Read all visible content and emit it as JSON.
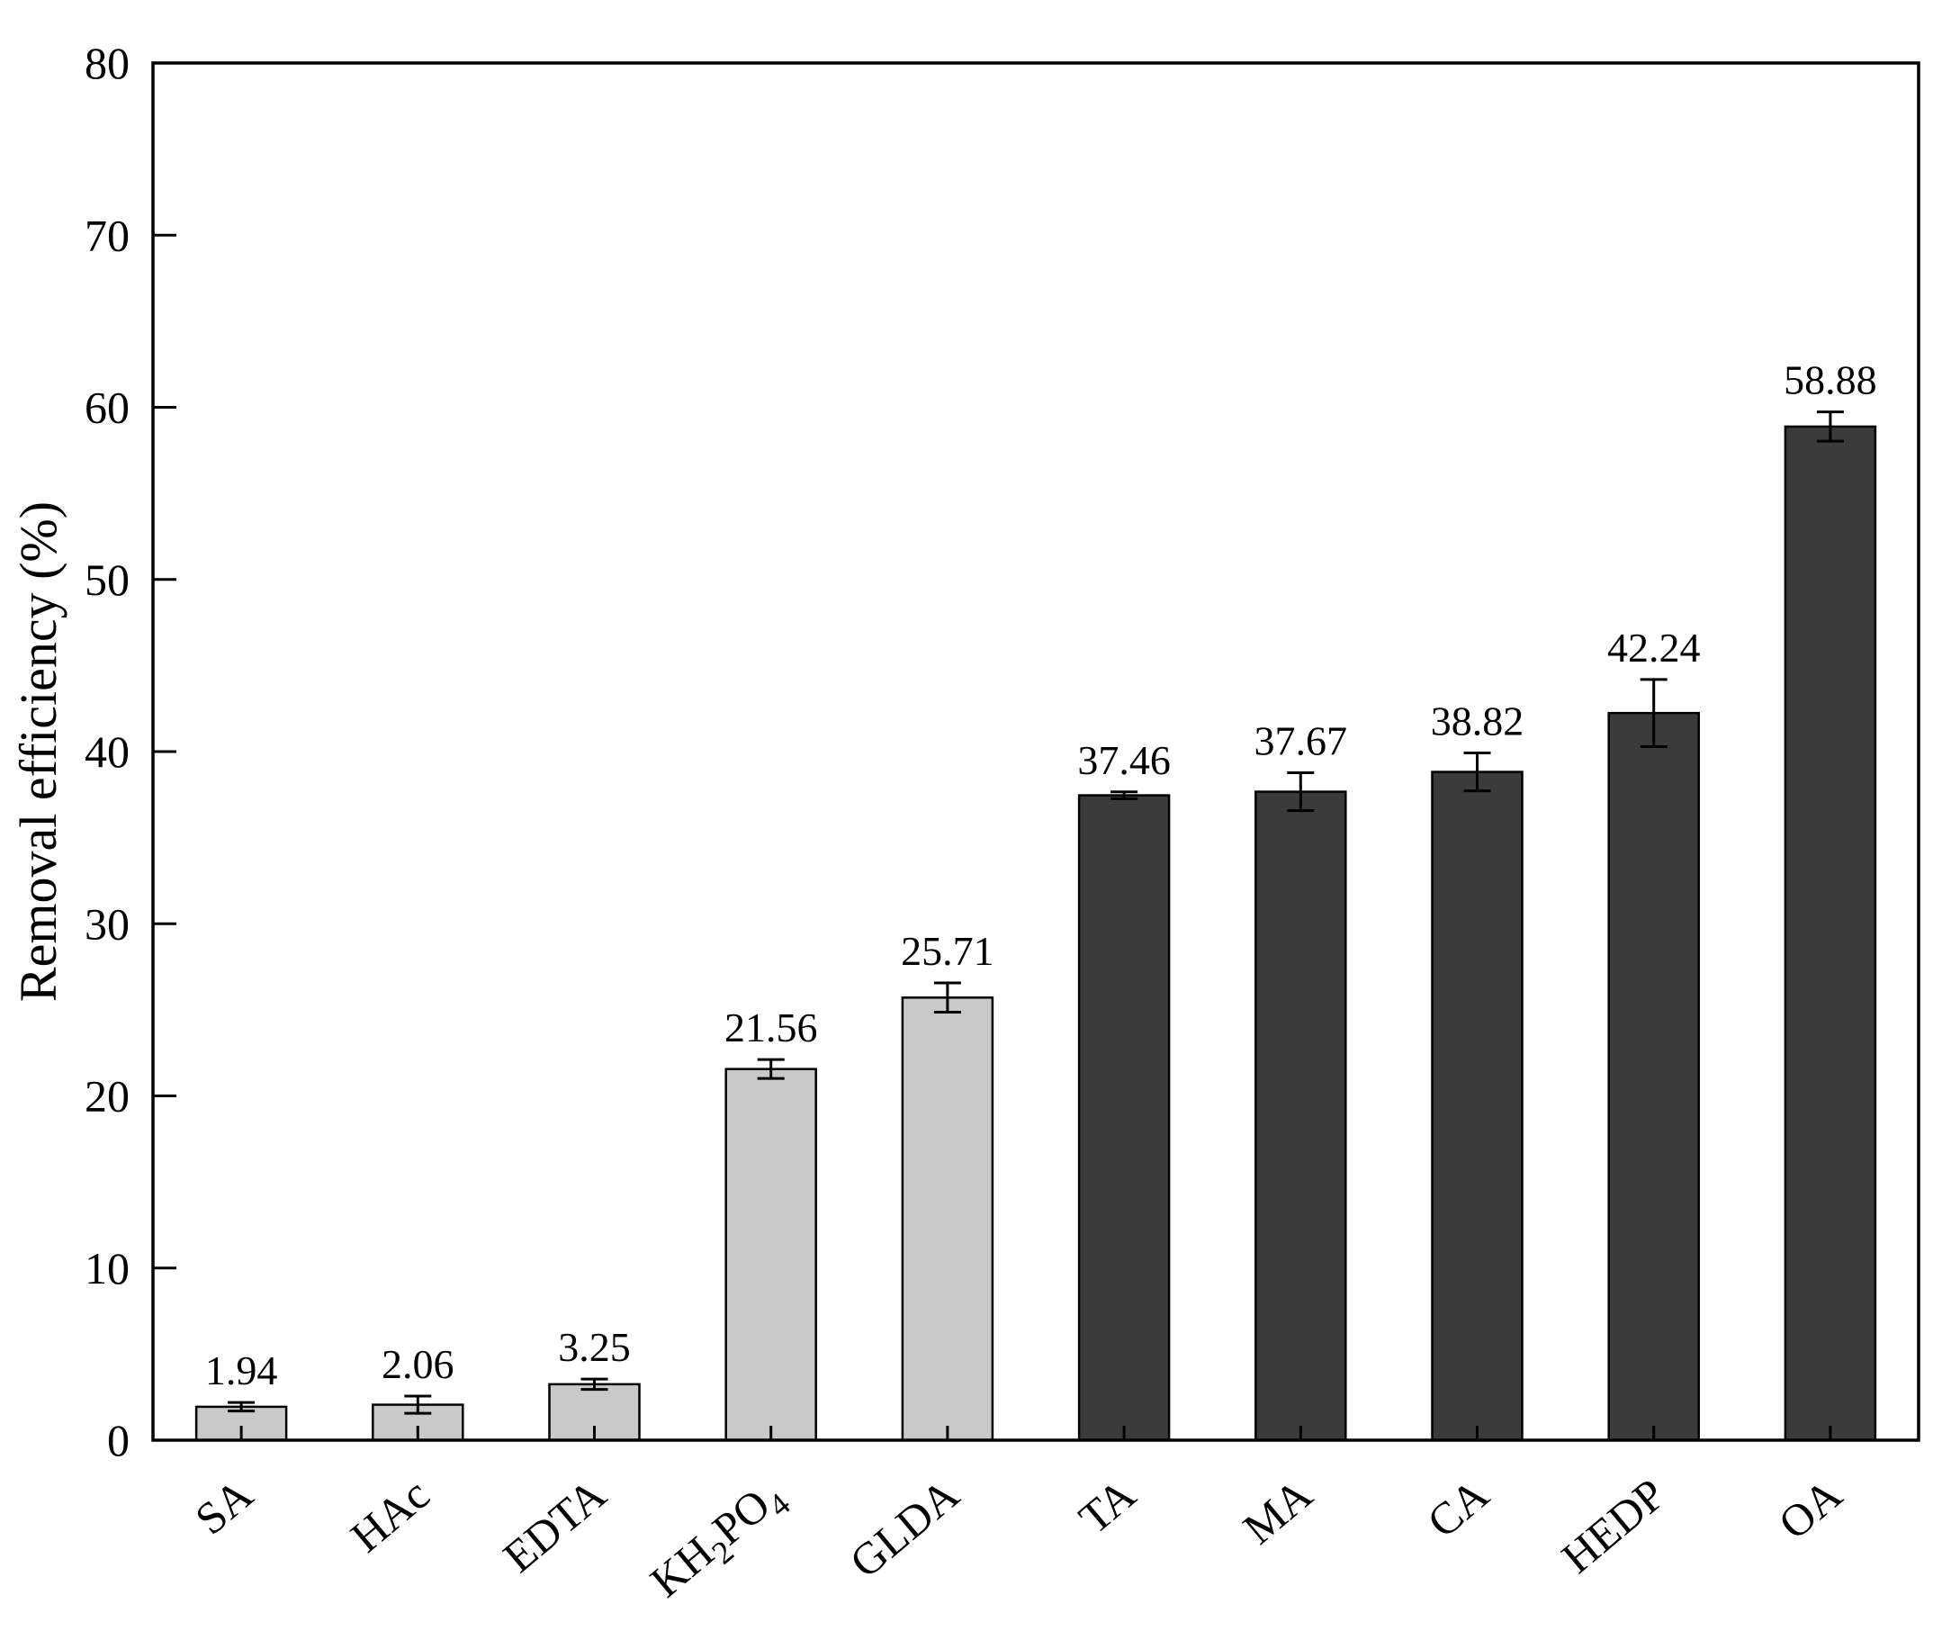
{
  "chart_data": {
    "type": "bar",
    "title": "",
    "xlabel": "",
    "ylabel": "Removal efficiency (%)",
    "ylim": [
      0,
      80
    ],
    "yticks": [
      0,
      10,
      20,
      30,
      40,
      50,
      60,
      70,
      80
    ],
    "grid": false,
    "legend": false,
    "categories": [
      "SA",
      "HAc",
      "EDTA",
      "KH2PO4",
      "GLDA",
      "TA",
      "MA",
      "CA",
      "HEDP",
      "OA"
    ],
    "formula_flags": [
      false,
      false,
      false,
      true,
      false,
      false,
      false,
      false,
      false,
      false
    ],
    "values": [
      1.94,
      2.06,
      3.25,
      21.56,
      25.71,
      37.46,
      37.67,
      38.82,
      42.24,
      58.88
    ],
    "errors": [
      0.25,
      0.5,
      0.3,
      0.55,
      0.85,
      0.2,
      1.1,
      1.1,
      1.95,
      0.85
    ],
    "value_labels": [
      "1.94",
      "2.06",
      "3.25",
      "21.56",
      "25.71",
      "37.46",
      "37.67",
      "38.82",
      "42.24",
      "58.88"
    ],
    "bar_colors": [
      "#c9c9c9",
      "#c9c9c9",
      "#c9c9c9",
      "#c9c9c9",
      "#c9c9c9",
      "#3b3b3b",
      "#3b3b3b",
      "#3b3b3b",
      "#3b3b3b",
      "#3b3b3b"
    ],
    "bar_edge_color": "#000000",
    "error_bar_color": "#000000",
    "axis_color": "#000000",
    "background_color": "#ffffff"
  }
}
